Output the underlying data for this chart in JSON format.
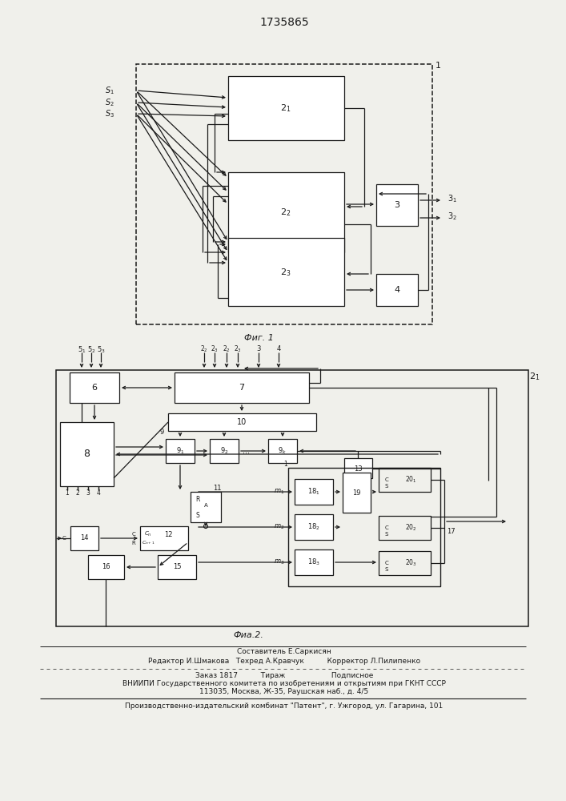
{
  "title": "1735865",
  "bg_color": "#f0f0eb",
  "lc": "#1a1a1a",
  "footer": [
    "Составитель Е.Саркисян",
    "Редактор И.Шмакова   Техред А.Кравчук          Корректор Л.Пилипенко",
    "Заказ 1817          Тираж                    Подписное",
    "ВНИИПИ Государственного комитета по изобретениям и открытиям при ГКНТ СССР",
    "113035, Москва, Ж-35, Раушская наб., д. 4/5",
    "Производственно-издательский комбинат \"Патент\", г. Ужгород, ул. Гагарина, 101"
  ]
}
